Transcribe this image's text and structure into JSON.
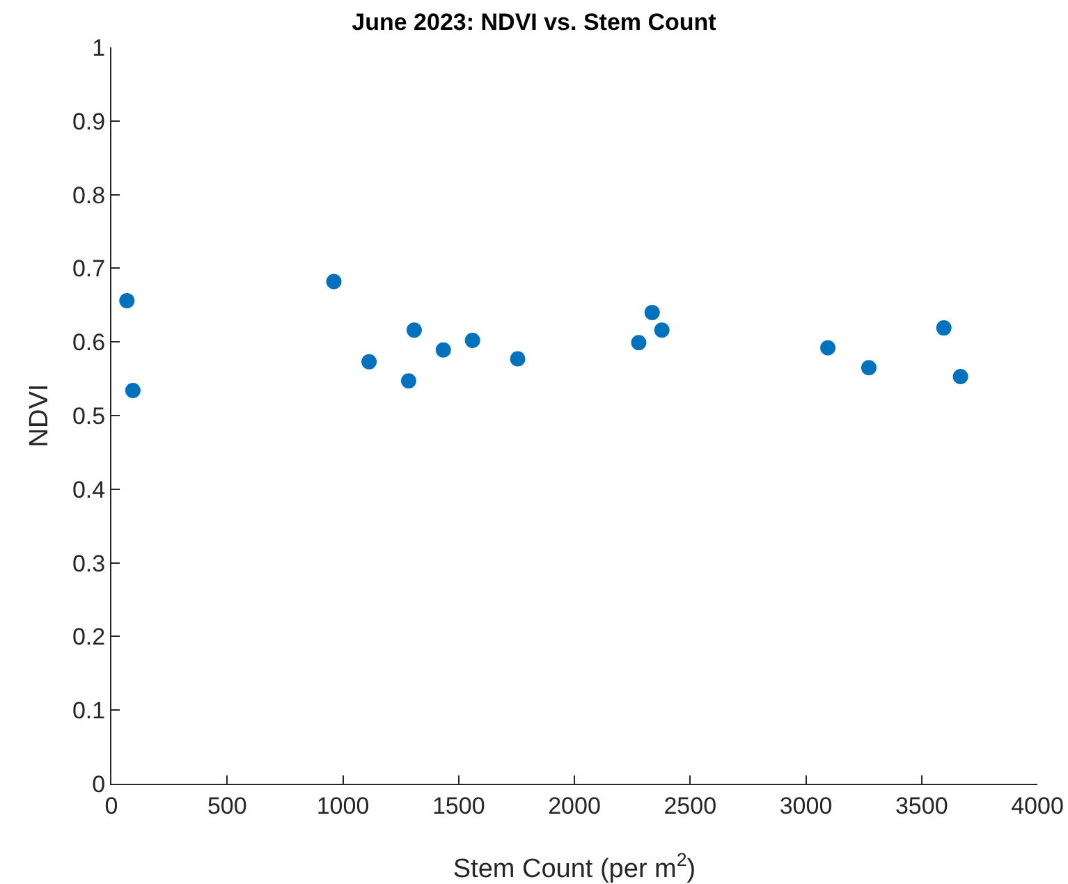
{
  "chart_data": {
    "type": "scatter",
    "title": "June 2023: NDVI vs. Stem Count",
    "xlabel": "Stem Count (per m$^{2}$)",
    "ylabel": "NDVI",
    "x": [
      67,
      93,
      961,
      1113,
      1284,
      1308,
      1434,
      1560,
      1755,
      2278,
      2336,
      2378,
      3095,
      3272,
      3596,
      3668
    ],
    "series": [
      {
        "color": "#0072bd",
        "values": [
          0.656,
          0.534,
          0.682,
          0.573,
          0.547,
          0.616,
          0.589,
          0.602,
          0.577,
          0.599,
          0.64,
          0.616,
          0.592,
          0.565,
          0.619,
          0.553
        ]
      }
    ],
    "xlim": [
      0,
      4000
    ],
    "xticks": [
      0,
      500,
      1000,
      1500,
      2000,
      2500,
      3000,
      3500,
      4000
    ],
    "ylim": [
      0,
      1
    ],
    "yticks": [
      0,
      0.1,
      0.2,
      0.3,
      0.4,
      0.5,
      0.6,
      0.7,
      0.8,
      0.9,
      1
    ],
    "marker": "circle",
    "grid": false
  }
}
